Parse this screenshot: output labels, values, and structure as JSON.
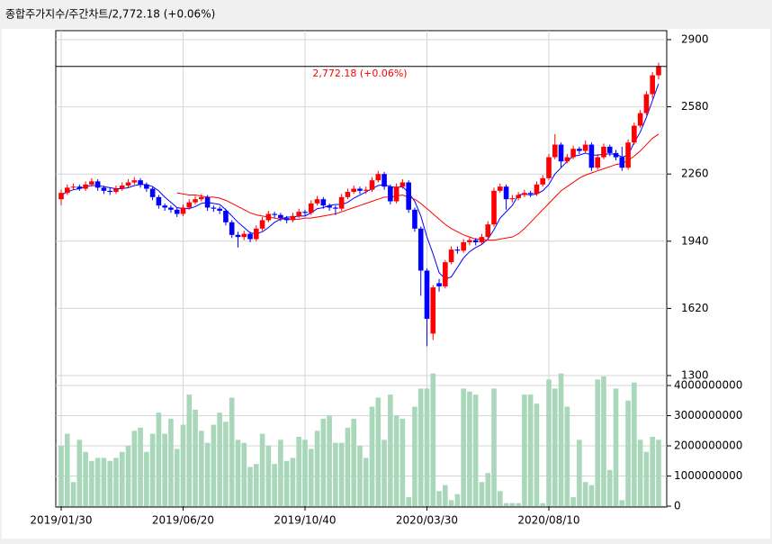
{
  "chart_data": {
    "type": "candlestick",
    "title": "종합주가지수/주간차트/2,772.18  (+0.06%)",
    "annotation": "2,772.18 (+0.06%)",
    "annotation_color": "#ff0000",
    "up_color": "#ff0000",
    "down_color": "#0000ff",
    "grid": true,
    "categories": [
      "2019/01/30",
      null,
      null,
      null,
      null,
      null,
      null,
      null,
      null,
      null,
      null,
      null,
      null,
      null,
      null,
      null,
      null,
      null,
      null,
      null,
      "2019/06/20",
      null,
      null,
      null,
      null,
      null,
      null,
      null,
      null,
      null,
      null,
      null,
      null,
      null,
      null,
      null,
      null,
      null,
      null,
      null,
      "2019/10/40",
      null,
      null,
      null,
      null,
      null,
      null,
      null,
      null,
      null,
      null,
      null,
      null,
      null,
      null,
      null,
      null,
      null,
      null,
      null,
      "2020/03/30",
      null,
      null,
      null,
      null,
      null,
      null,
      null,
      null,
      null,
      null,
      null,
      null,
      null,
      null,
      null,
      null,
      null,
      null,
      null,
      "2020/08/10",
      null,
      null,
      null,
      null,
      null,
      null,
      null,
      null,
      null,
      null,
      null,
      null,
      null,
      null,
      null,
      null,
      null,
      null
    ],
    "open": [
      2140,
      2170,
      2195,
      2200,
      2190,
      2210,
      2225,
      2195,
      2180,
      2175,
      2190,
      2205,
      2220,
      2230,
      2210,
      2190,
      2150,
      2110,
      2100,
      2090,
      2070,
      2100,
      2125,
      2140,
      2150,
      2100,
      2095,
      2085,
      2030,
      1970,
      1960,
      1975,
      1950,
      2000,
      2040,
      2070,
      2065,
      2050,
      2040,
      2060,
      2080,
      2075,
      2120,
      2140,
      2110,
      2100,
      2095,
      2150,
      2175,
      2190,
      2180,
      2185,
      2230,
      2260,
      2200,
      2130,
      2200,
      2220,
      2090,
      2000,
      1800,
      1500,
      1740,
      1725,
      1840,
      1900,
      1895,
      1935,
      1945,
      1935,
      1960,
      2020,
      2180,
      2200,
      2140,
      2145,
      2160,
      2170,
      2165,
      2210,
      2240,
      2340,
      2400,
      2320,
      2340,
      2380,
      2370,
      2400,
      2290,
      2340,
      2390,
      2360,
      2340,
      2290,
      2410,
      2490,
      2550,
      2640,
      2730
    ],
    "high": [
      2185,
      2210,
      2215,
      2210,
      2225,
      2240,
      2235,
      2205,
      2195,
      2205,
      2220,
      2235,
      2245,
      2240,
      2220,
      2200,
      2160,
      2120,
      2110,
      2100,
      2115,
      2140,
      2155,
      2165,
      2160,
      2110,
      2105,
      2095,
      2040,
      1985,
      1990,
      1985,
      2015,
      2055,
      2085,
      2080,
      2075,
      2060,
      2075,
      2095,
      2090,
      2135,
      2155,
      2150,
      2120,
      2110,
      2165,
      2190,
      2205,
      2200,
      2200,
      2245,
      2275,
      2270,
      2210,
      2215,
      2235,
      2230,
      2100,
      2010,
      1810,
      1730,
      1760,
      1850,
      1915,
      1915,
      1950,
      1960,
      1955,
      1975,
      2035,
      2195,
      2215,
      2210,
      2160,
      2175,
      2185,
      2180,
      2225,
      2255,
      2355,
      2450,
      2410,
      2355,
      2395,
      2390,
      2420,
      2410,
      2355,
      2405,
      2400,
      2375,
      2390,
      2425,
      2505,
      2565,
      2655,
      2745,
      2790
    ],
    "low": [
      2110,
      2160,
      2185,
      2180,
      2180,
      2200,
      2180,
      2165,
      2160,
      2165,
      2180,
      2195,
      2210,
      2195,
      2175,
      2135,
      2095,
      2085,
      2075,
      2055,
      2060,
      2090,
      2115,
      2130,
      2085,
      2080,
      2070,
      2015,
      1955,
      1910,
      1945,
      1935,
      1940,
      1990,
      2030,
      2050,
      2035,
      2025,
      2030,
      2050,
      2060,
      2065,
      2110,
      2095,
      2085,
      2065,
      2085,
      2140,
      2165,
      2165,
      2165,
      2175,
      2220,
      2185,
      2115,
      2120,
      2190,
      2075,
      1985,
      1680,
      1440,
      1470,
      1700,
      1715,
      1830,
      1880,
      1885,
      1920,
      1920,
      1925,
      1950,
      2010,
      2170,
      2090,
      2125,
      2135,
      2150,
      2150,
      2155,
      2200,
      2230,
      2330,
      2290,
      2310,
      2330,
      2355,
      2360,
      2275,
      2280,
      2330,
      2345,
      2325,
      2275,
      2280,
      2400,
      2480,
      2540,
      2620,
      2710
    ],
    "close": [
      2170,
      2195,
      2200,
      2190,
      2210,
      2225,
      2195,
      2180,
      2175,
      2190,
      2205,
      2220,
      2230,
      2210,
      2190,
      2150,
      2110,
      2100,
      2090,
      2070,
      2100,
      2125,
      2140,
      2150,
      2100,
      2095,
      2085,
      2030,
      1970,
      1960,
      1975,
      1950,
      2000,
      2040,
      2070,
      2065,
      2050,
      2040,
      2060,
      2080,
      2075,
      2120,
      2140,
      2110,
      2100,
      2095,
      2150,
      2175,
      2190,
      2180,
      2185,
      2230,
      2260,
      2200,
      2130,
      2200,
      2220,
      2090,
      2000,
      1800,
      1570,
      1720,
      1725,
      1840,
      1900,
      1895,
      1935,
      1945,
      1935,
      1960,
      2020,
      2180,
      2200,
      2140,
      2145,
      2160,
      2170,
      2165,
      2210,
      2240,
      2340,
      2400,
      2320,
      2340,
      2380,
      2370,
      2400,
      2290,
      2340,
      2390,
      2360,
      2340,
      2290,
      2410,
      2490,
      2550,
      2640,
      2730,
      2772.18
    ],
    "series": [
      {
        "color": "#0000ff",
        "values": [
          2160,
          2175,
          2185,
          2190,
          2200,
          2205,
          2205,
          2200,
          2195,
          2190,
          2190,
          2195,
          2205,
          2210,
          2210,
          2200,
          2180,
          2150,
          2125,
          2100,
          2095,
          2095,
          2105,
          2120,
          2125,
          2120,
          2115,
          2090,
          2060,
          2030,
          2005,
          1980,
          1975,
          1985,
          2005,
          2030,
          2045,
          2055,
          2055,
          2060,
          2060,
          2075,
          2095,
          2100,
          2110,
          2115,
          2115,
          2125,
          2145,
          2160,
          2175,
          2190,
          2205,
          2210,
          2200,
          2195,
          2200,
          2170,
          2130,
          2060,
          1960,
          1880,
          1790,
          1760,
          1770,
          1815,
          1860,
          1890,
          1910,
          1925,
          1950,
          1995,
          2050,
          2080,
          2110,
          2160,
          2165,
          2160,
          2165,
          2180,
          2210,
          2260,
          2290,
          2320,
          2345,
          2350,
          2360,
          2350,
          2350,
          2355,
          2355,
          2355,
          2340,
          2350,
          2410,
          2460,
          2530,
          2610,
          2690
        ]
      },
      {
        "color": "#ff0000",
        "values": [
          null,
          null,
          null,
          null,
          null,
          null,
          null,
          null,
          null,
          null,
          null,
          null,
          null,
          null,
          null,
          null,
          null,
          null,
          null,
          2170,
          2165,
          2160,
          2160,
          2155,
          2150,
          2150,
          2145,
          2135,
          2120,
          2105,
          2090,
          2075,
          2065,
          2060,
          2055,
          2050,
          2045,
          2045,
          2045,
          2045,
          2050,
          2050,
          2055,
          2060,
          2065,
          2070,
          2080,
          2090,
          2100,
          2110,
          2120,
          2130,
          2140,
          2150,
          2150,
          2155,
          2160,
          2150,
          2140,
          2120,
          2095,
          2070,
          2045,
          2020,
          2000,
          1985,
          1970,
          1960,
          1950,
          1950,
          1945,
          1945,
          1950,
          1955,
          1960,
          1975,
          2000,
          2030,
          2060,
          2090,
          2120,
          2150,
          2180,
          2200,
          2220,
          2240,
          2255,
          2265,
          2275,
          2285,
          2295,
          2305,
          2310,
          2325,
          2345,
          2370,
          2400,
          2430,
          2450
        ]
      }
    ],
    "ylim": [
      1300,
      2900
    ],
    "yticks": [
      1300,
      1620,
      1940,
      2260,
      2580,
      2900
    ],
    "volume": {
      "color": "#a8d8b9",
      "ylim": [
        0,
        4330000000
      ],
      "yticks": [
        0,
        1000000000,
        2000000000,
        3000000000,
        4000000000
      ],
      "values": [
        2000000000,
        2400000000,
        800000000,
        2200000000,
        1800000000,
        1500000000,
        1600000000,
        1600000000,
        1500000000,
        1600000000,
        1800000000,
        2000000000,
        2500000000,
        2600000000,
        1800000000,
        2400000000,
        3100000000,
        2400000000,
        2900000000,
        1900000000,
        2700000000,
        3700000000,
        3200000000,
        2500000000,
        2100000000,
        2700000000,
        3100000000,
        2800000000,
        3600000000,
        2200000000,
        2100000000,
        1300000000,
        1400000000,
        2400000000,
        2000000000,
        1400000000,
        2200000000,
        1500000000,
        1600000000,
        2300000000,
        2200000000,
        1900000000,
        2500000000,
        2900000000,
        3000000000,
        2100000000,
        2100000000,
        2600000000,
        2900000000,
        2000000000,
        1600000000,
        3300000000,
        3600000000,
        2200000000,
        3700000000,
        3000000000,
        2900000000,
        300000000,
        3300000000,
        3900000000,
        3900000000,
        4400000000,
        500000000,
        700000000,
        200000000,
        400000000,
        3900000000,
        3800000000,
        3700000000,
        800000000,
        1100000000,
        3900000000,
        500000000,
        100000000,
        100000000,
        100000000,
        3700000000,
        3700000000,
        3400000000,
        100000000,
        4200000000,
        3900000000,
        4400000000,
        3300000000,
        300000000,
        2200000000,
        800000000,
        700000000,
        4200000000,
        4300000000,
        1200000000,
        3900000000,
        200000000,
        3500000000,
        4100000000,
        2200000000,
        1800000000,
        2300000000,
        2200000000
      ]
    }
  }
}
